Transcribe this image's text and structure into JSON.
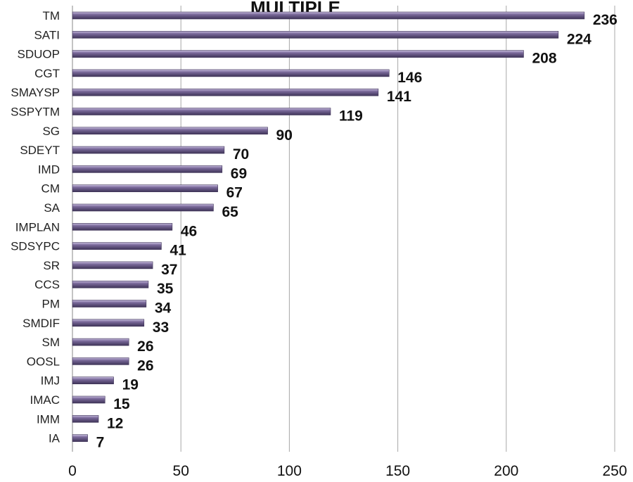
{
  "chart_data": {
    "type": "bar",
    "orientation": "horizontal",
    "title": "MULTIPLE",
    "categories": [
      "TM",
      "SATI",
      "SDUOP",
      "CGT",
      "SMAYSP",
      "SSPYTM",
      "SG",
      "SDEYT",
      "IMD",
      "CM",
      "SA",
      "IMPLAN",
      "SDSYPC",
      "SR",
      "CCS",
      "PM",
      "SMDIF",
      "SM",
      "OOSL",
      "IMJ",
      "IMAC",
      "IMM",
      "IA"
    ],
    "values": [
      236,
      224,
      208,
      146,
      141,
      119,
      90,
      70,
      69,
      67,
      65,
      46,
      41,
      37,
      35,
      34,
      33,
      26,
      26,
      19,
      15,
      12,
      7
    ],
    "xlim": [
      0,
      250
    ],
    "xticks": [
      0,
      50,
      100,
      150,
      200,
      250
    ],
    "xlabel": "",
    "ylabel": "",
    "grid": "vertical",
    "legend": "none",
    "bar_color": "#7b6a9b",
    "bar_highlight_color": "#c9bfe0",
    "bar_shadow_color": "#3f3458"
  }
}
